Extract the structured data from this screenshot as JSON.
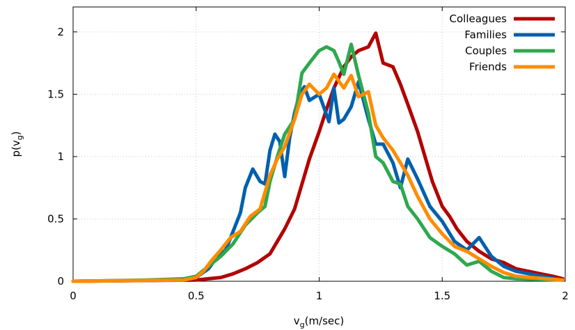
{
  "chart_data": {
    "type": "line",
    "title": "",
    "xlabel": {
      "base": "v",
      "sub": "g",
      "rest": "(m/sec)"
    },
    "ylabel": {
      "base": "p(v",
      "sub": "g",
      "rest": ")"
    },
    "xlim": [
      0,
      2
    ],
    "ylim": [
      0,
      2.2
    ],
    "xticks": [
      0,
      0.5,
      1,
      1.5,
      2
    ],
    "xtick_labels": [
      "0",
      "0.5",
      "1",
      "1.5",
      "2"
    ],
    "yticks": [
      0,
      0.5,
      1,
      1.5,
      2
    ],
    "ytick_labels": [
      "0",
      "0.5",
      "1",
      "1.5",
      "2"
    ],
    "grid": true,
    "legend_position": "top-right",
    "series": [
      {
        "name": "Colleagues",
        "color": "#b30000",
        "x": [
          0,
          0.5,
          0.55,
          0.6,
          0.65,
          0.7,
          0.75,
          0.8,
          0.83,
          0.86,
          0.9,
          0.93,
          0.96,
          1.0,
          1.03,
          1.06,
          1.1,
          1.13,
          1.16,
          1.2,
          1.23,
          1.26,
          1.3,
          1.33,
          1.36,
          1.4,
          1.43,
          1.46,
          1.5,
          1.53,
          1.56,
          1.6,
          1.65,
          1.7,
          1.75,
          1.8,
          1.85,
          1.9,
          1.95,
          1.99
        ],
        "y": [
          0,
          0.01,
          0.02,
          0.03,
          0.06,
          0.1,
          0.15,
          0.22,
          0.32,
          0.42,
          0.58,
          0.78,
          0.98,
          1.2,
          1.38,
          1.55,
          1.72,
          1.8,
          1.85,
          1.88,
          1.99,
          1.75,
          1.72,
          1.58,
          1.42,
          1.2,
          1.0,
          0.8,
          0.6,
          0.52,
          0.42,
          0.32,
          0.24,
          0.18,
          0.15,
          0.1,
          0.08,
          0.06,
          0.04,
          0.02
        ]
      },
      {
        "name": "Families",
        "color": "#0060ad",
        "x": [
          0,
          0.45,
          0.5,
          0.55,
          0.58,
          0.62,
          0.65,
          0.68,
          0.7,
          0.73,
          0.76,
          0.78,
          0.8,
          0.82,
          0.84,
          0.86,
          0.88,
          0.9,
          0.92,
          0.94,
          0.96,
          1.0,
          1.04,
          1.06,
          1.08,
          1.1,
          1.13,
          1.16,
          1.2,
          1.23,
          1.26,
          1.3,
          1.33,
          1.36,
          1.4,
          1.45,
          1.5,
          1.55,
          1.6,
          1.65,
          1.7,
          1.75,
          1.8,
          1.99
        ],
        "y": [
          0,
          0.01,
          0.03,
          0.1,
          0.18,
          0.25,
          0.4,
          0.55,
          0.75,
          0.9,
          0.8,
          0.78,
          1.05,
          1.18,
          1.12,
          0.84,
          1.15,
          1.35,
          1.5,
          1.56,
          1.45,
          1.5,
          1.28,
          1.55,
          1.27,
          1.3,
          1.4,
          1.6,
          1.3,
          1.1,
          1.1,
          0.95,
          0.75,
          0.98,
          0.82,
          0.6,
          0.48,
          0.32,
          0.25,
          0.35,
          0.2,
          0.12,
          0.08,
          0.01
        ]
      },
      {
        "name": "Couples",
        "color": "#2ea84f",
        "x": [
          0,
          0.3,
          0.45,
          0.5,
          0.55,
          0.6,
          0.65,
          0.7,
          0.75,
          0.78,
          0.8,
          0.83,
          0.86,
          0.9,
          0.93,
          0.96,
          1.0,
          1.03,
          1.06,
          1.08,
          1.1,
          1.13,
          1.16,
          1.2,
          1.23,
          1.26,
          1.3,
          1.33,
          1.36,
          1.4,
          1.45,
          1.5,
          1.55,
          1.6,
          1.65,
          1.7,
          1.75,
          1.8,
          1.99
        ],
        "y": [
          0,
          0.01,
          0.02,
          0.04,
          0.12,
          0.2,
          0.3,
          0.45,
          0.55,
          0.6,
          0.8,
          1.0,
          1.18,
          1.3,
          1.67,
          1.75,
          1.85,
          1.88,
          1.85,
          1.76,
          1.66,
          1.9,
          1.65,
          1.35,
          1.0,
          0.95,
          0.8,
          0.78,
          0.6,
          0.5,
          0.35,
          0.28,
          0.22,
          0.13,
          0.16,
          0.08,
          0.03,
          0.02,
          0.01
        ]
      },
      {
        "name": "Friends",
        "color": "#ff8c00",
        "x": [
          0,
          0.45,
          0.5,
          0.53,
          0.56,
          0.6,
          0.64,
          0.68,
          0.72,
          0.76,
          0.8,
          0.83,
          0.86,
          0.9,
          0.93,
          0.96,
          1.0,
          1.03,
          1.06,
          1.1,
          1.13,
          1.16,
          1.2,
          1.23,
          1.26,
          1.3,
          1.33,
          1.36,
          1.4,
          1.45,
          1.5,
          1.55,
          1.6,
          1.65,
          1.7,
          1.75,
          1.8,
          1.99
        ],
        "y": [
          0,
          0.01,
          0.03,
          0.08,
          0.16,
          0.25,
          0.35,
          0.4,
          0.52,
          0.58,
          0.85,
          0.98,
          1.08,
          1.3,
          1.5,
          1.58,
          1.5,
          1.55,
          1.66,
          1.55,
          1.65,
          1.48,
          1.52,
          1.25,
          1.15,
          1.05,
          0.95,
          0.85,
          0.68,
          0.5,
          0.38,
          0.28,
          0.24,
          0.18,
          0.12,
          0.07,
          0.04,
          0.01
        ]
      }
    ]
  }
}
